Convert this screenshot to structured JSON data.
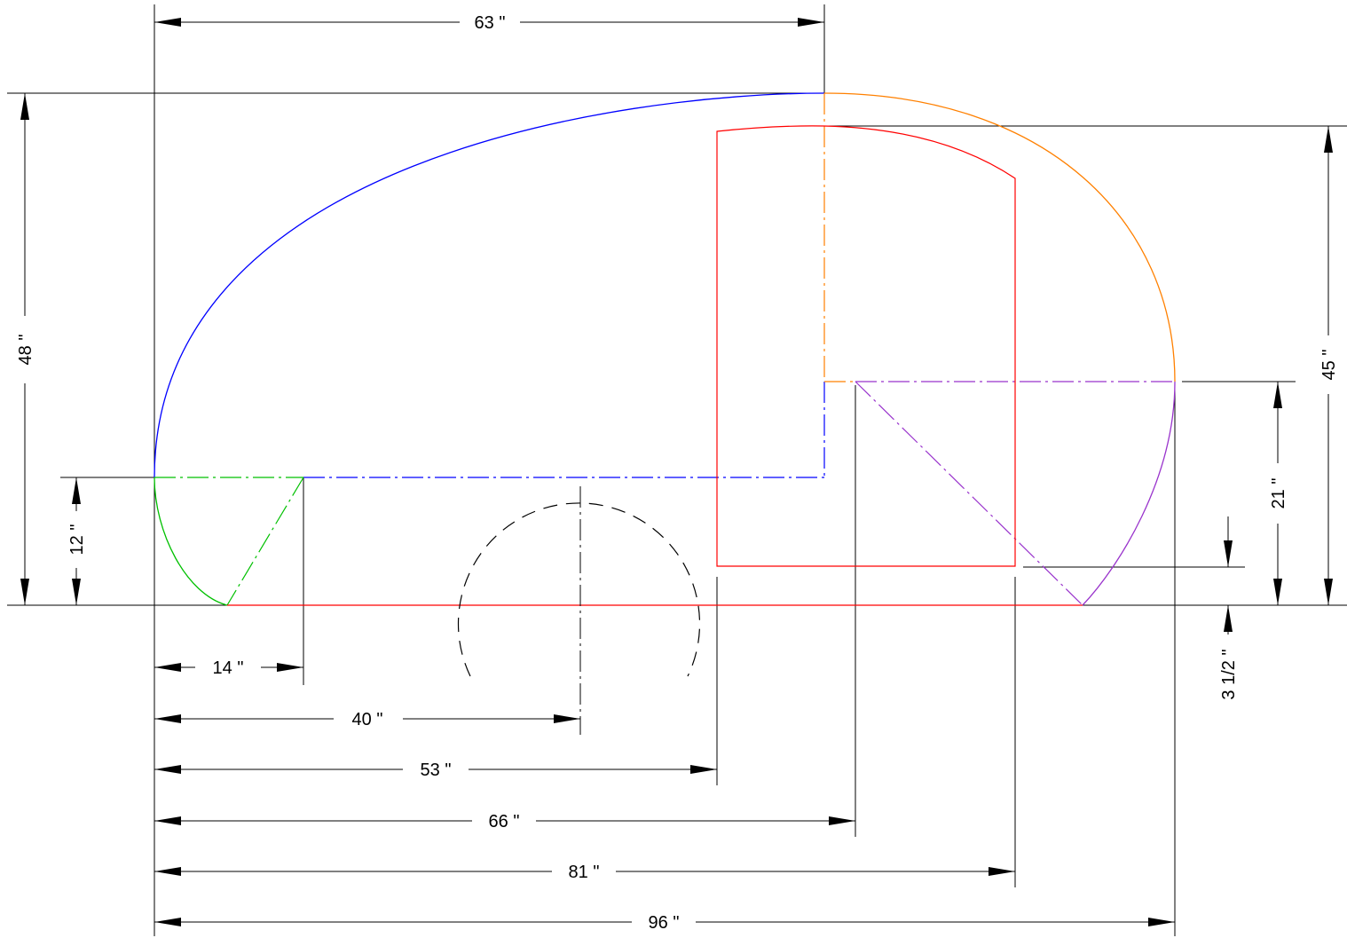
{
  "drawing": {
    "dimensions": {
      "top_width": "63 \"",
      "total_height": "48 \"",
      "galley_height": "45 \"",
      "rear_height": "21 \"",
      "front_height": "12 \"",
      "clearance": "3 1/2 \"",
      "d14": "14 \"",
      "d40": "40 \"",
      "d53": "53 \"",
      "d66": "66 \"",
      "d81": "81 \"",
      "d96": "96 \""
    },
    "colors": {
      "profile_front": "#0000ff",
      "profile_rear": "#ff8000",
      "profile_nose": "#00c000",
      "profile_tail": "#9933cc",
      "floor_and_hatch": "#ff0000",
      "dimension": "#000000"
    }
  }
}
